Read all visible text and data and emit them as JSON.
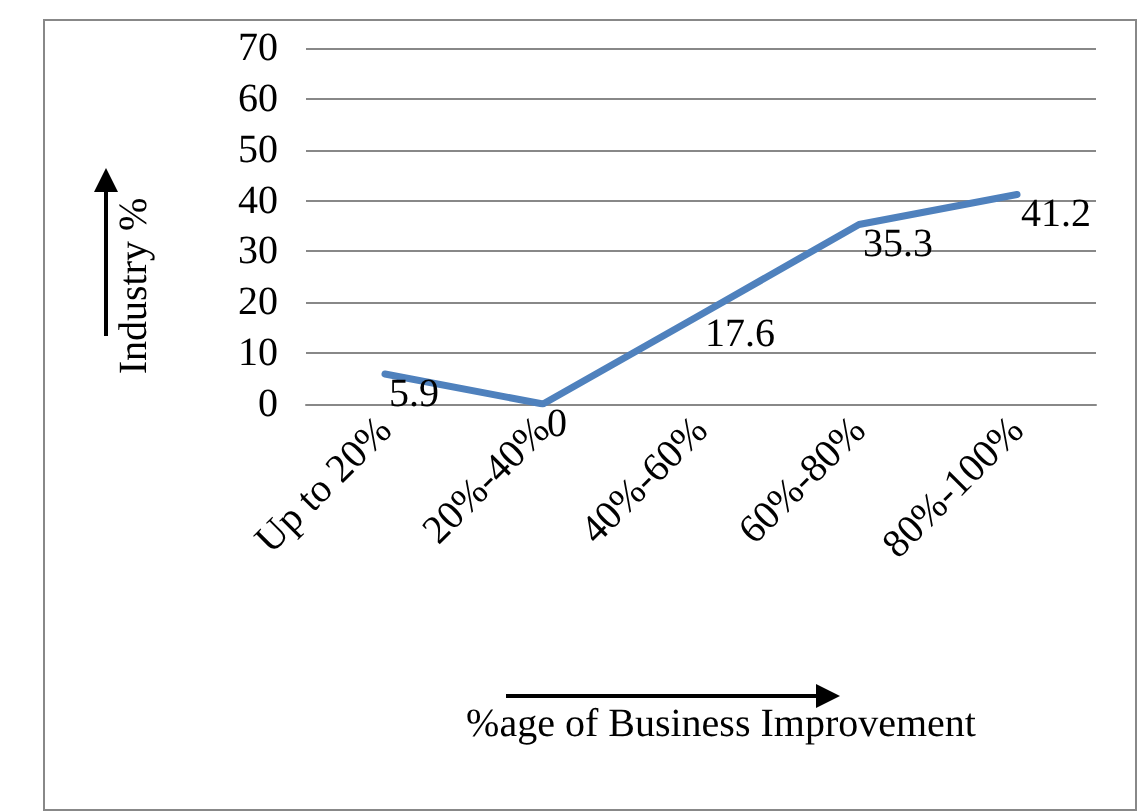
{
  "chart_data": {
    "type": "line",
    "xlabel": "%age of Business Improvement",
    "ylabel": "Industry %",
    "categories": [
      "Up to 20%",
      "20%-40%",
      "40%-60%",
      "60%-80%",
      "80%-100%"
    ],
    "series": [
      {
        "color": "#4f81bd",
        "values": [
          5.9,
          0,
          17.6,
          35.3,
          41.2
        ]
      }
    ],
    "ylim": [
      0,
      70
    ],
    "yticks": [
      0,
      10,
      20,
      30,
      40,
      50,
      60,
      70
    ],
    "grid": "y",
    "data_labels": true,
    "marker": "none",
    "line_style": "solid"
  }
}
